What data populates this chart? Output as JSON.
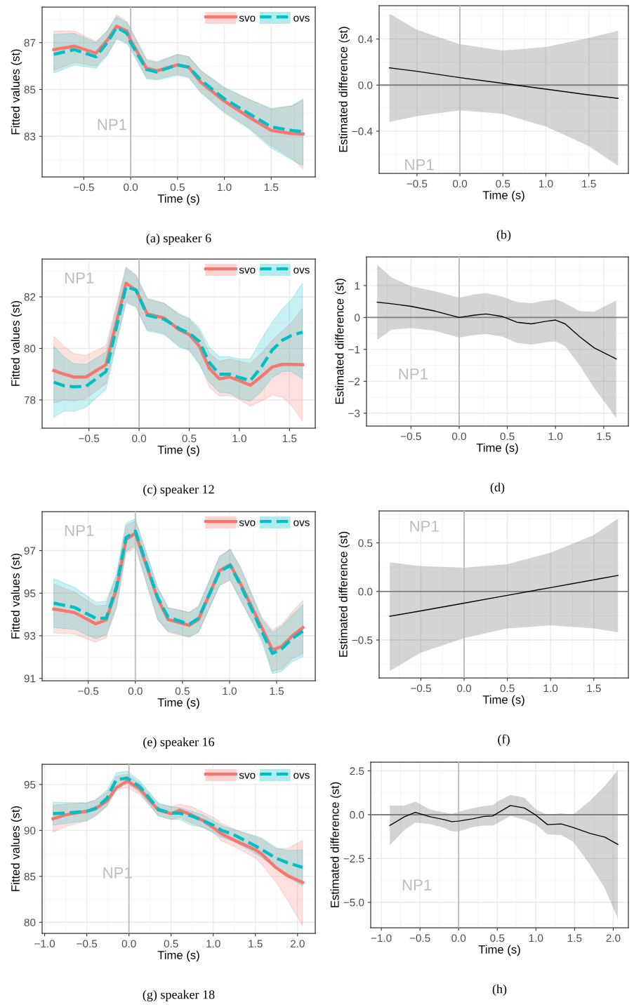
{
  "chart_data": [
    {
      "type": "line",
      "title": "(a) speaker 6",
      "xlabel": "Time (s)",
      "ylabel": "Fitted values (st)",
      "annotations": [
        "NP1"
      ],
      "grid": true,
      "legend": "top right",
      "x": [
        -0.82,
        -0.6,
        -0.37,
        -0.25,
        -0.15,
        -0.04,
        0.0,
        0.17,
        0.28,
        0.5,
        0.62,
        0.75,
        1.0,
        1.25,
        1.5,
        1.72,
        1.84
      ],
      "series": [
        {
          "name": "svo",
          "color": "#f8766d",
          "line_style": "solid",
          "values": [
            86.7,
            86.85,
            86.55,
            87.1,
            87.7,
            87.5,
            87.1,
            85.9,
            85.8,
            86.05,
            85.95,
            85.3,
            84.5,
            83.85,
            83.25,
            83.12,
            83.1
          ],
          "lower": [
            85.8,
            86.15,
            86.0,
            86.5,
            87.2,
            87.0,
            86.8,
            85.5,
            85.45,
            85.65,
            85.55,
            84.9,
            84.05,
            83.4,
            82.6,
            82.05,
            81.6
          ],
          "upper": [
            87.5,
            87.5,
            87.05,
            87.5,
            88.2,
            87.9,
            87.6,
            86.3,
            86.2,
            86.5,
            86.4,
            85.8,
            85.05,
            84.6,
            84.15,
            84.3,
            84.55
          ]
        },
        {
          "name": "ovs",
          "color": "#00bfc4",
          "line_style": "dashed",
          "values": [
            86.5,
            86.7,
            86.4,
            87.0,
            87.65,
            87.4,
            87.0,
            85.85,
            85.75,
            86.05,
            85.95,
            85.4,
            84.6,
            84.0,
            83.4,
            83.25,
            83.2
          ],
          "lower": [
            85.7,
            86.05,
            85.9,
            86.45,
            87.15,
            86.95,
            86.7,
            85.45,
            85.4,
            85.6,
            85.5,
            84.85,
            84.0,
            83.35,
            82.5,
            82.0,
            81.75
          ],
          "upper": [
            87.35,
            87.4,
            87.0,
            87.5,
            88.1,
            87.85,
            87.55,
            86.25,
            86.15,
            86.5,
            86.4,
            85.8,
            85.1,
            84.6,
            84.2,
            84.3,
            84.6
          ]
        }
      ],
      "xlim": [
        -0.945,
        1.97
      ],
      "ylim": [
        81.27,
        88.52
      ],
      "xticks": [
        {
          "value": -0.5,
          "label": "−0.5"
        },
        {
          "value": 0.0,
          "label": "0.0"
        },
        {
          "value": 0.5,
          "label": "0.5"
        },
        {
          "value": 1.0,
          "label": "1.0"
        },
        {
          "value": 1.5,
          "label": "1.5"
        }
      ],
      "yticks": [
        83,
        85,
        87
      ],
      "ref_lines": [
        {
          "axis": "x",
          "value": 0,
          "color": "#bebebe"
        }
      ]
    },
    {
      "type": "line",
      "title": "(b)",
      "xlabel": "Time (s)",
      "ylabel": "Estimated difference (st)",
      "annotations": [
        "NP1"
      ],
      "grid": true,
      "x": [
        -0.82,
        -0.5,
        0,
        0.5,
        1.0,
        1.5,
        1.84
      ],
      "series": [
        {
          "color": "#000000",
          "line_style": "solid",
          "values": [
            0.15,
            0.12,
            0.065,
            0.015,
            -0.035,
            -0.085,
            -0.115
          ],
          "lower": [
            -0.32,
            -0.27,
            -0.22,
            -0.25,
            -0.36,
            -0.53,
            -0.7
          ],
          "upper": [
            0.62,
            0.48,
            0.355,
            0.3,
            0.33,
            0.41,
            0.47
          ]
        }
      ],
      "xlim": [
        -0.94,
        1.96
      ],
      "ylim": [
        -0.766,
        0.69
      ],
      "xticks": [
        {
          "value": -0.5,
          "label": "−0.5"
        },
        {
          "value": 0.0,
          "label": "0.0"
        },
        {
          "value": 0.5,
          "label": "0.5"
        },
        {
          "value": 1.0,
          "label": "1.0"
        },
        {
          "value": 1.5,
          "label": "1.5"
        }
      ],
      "yticks": [
        {
          "value": -0.4,
          "label": "−0.4"
        },
        {
          "value": 0.0,
          "label": "0.0"
        },
        {
          "value": 0.4,
          "label": "0.4"
        }
      ],
      "ref_lines": [
        {
          "axis": "x",
          "value": 0,
          "color": "#bebebe"
        },
        {
          "axis": "y",
          "value": 0,
          "color": "#7f7f7f"
        }
      ]
    },
    {
      "type": "line",
      "title": "(c) speaker 12",
      "xlabel": "Time (s)",
      "ylabel": "Fitted values (st)",
      "annotations": [
        "NP1"
      ],
      "grid": true,
      "legend": "top right",
      "x": [
        -0.85,
        -0.75,
        -0.65,
        -0.53,
        -0.33,
        -0.13,
        -0.03,
        0.08,
        0.25,
        0.4,
        0.5,
        0.6,
        0.7,
        0.8,
        0.9,
        1.0,
        1.11,
        1.22,
        1.33,
        1.43,
        1.52,
        1.63
      ],
      "series": [
        {
          "name": "svo",
          "color": "#f8766d",
          "line_style": "solid",
          "values": [
            79.14,
            79.0,
            78.89,
            78.89,
            79.37,
            82.53,
            82.26,
            81.34,
            81.18,
            80.72,
            80.54,
            80.09,
            79.23,
            78.82,
            78.89,
            78.75,
            78.57,
            78.91,
            79.28,
            79.38,
            79.38,
            79.37
          ],
          "lower": [
            77.87,
            78.0,
            77.96,
            78.05,
            78.64,
            81.81,
            81.63,
            80.72,
            80.59,
            80.09,
            79.95,
            79.46,
            78.51,
            78.15,
            78.17,
            78.02,
            77.76,
            77.96,
            78.19,
            78.1,
            77.78,
            77.18
          ],
          "upper": [
            80.47,
            80.09,
            79.8,
            79.73,
            80.11,
            83.17,
            82.85,
            81.95,
            81.76,
            81.31,
            81.13,
            80.68,
            79.82,
            79.5,
            79.59,
            79.5,
            79.41,
            79.82,
            80.32,
            80.68,
            81.0,
            81.56
          ]
        },
        {
          "name": "ovs",
          "color": "#00bfc4",
          "line_style": "dashed",
          "values": [
            78.69,
            78.55,
            78.51,
            78.53,
            79.1,
            82.4,
            82.26,
            81.29,
            81.13,
            80.77,
            80.59,
            80.27,
            79.46,
            79.0,
            79.0,
            78.87,
            78.75,
            79.28,
            79.95,
            80.32,
            80.5,
            80.63
          ],
          "lower": [
            77.33,
            77.56,
            77.56,
            77.72,
            78.42,
            81.76,
            81.6,
            80.68,
            80.54,
            80.05,
            79.91,
            79.37,
            78.69,
            78.3,
            78.26,
            78.05,
            77.95,
            78.33,
            78.87,
            79.11,
            79.1,
            78.82
          ],
          "upper": [
            80.09,
            79.68,
            79.41,
            79.38,
            79.86,
            83.12,
            82.81,
            81.92,
            81.74,
            81.34,
            81.18,
            80.8,
            80.05,
            79.68,
            79.68,
            79.59,
            79.59,
            80.36,
            81.04,
            81.54,
            81.9,
            82.53
          ]
        }
      ],
      "xlim": [
        -0.967,
        1.757
      ],
      "ylim": [
        76.91,
        83.47
      ],
      "xticks": [
        {
          "value": -0.5,
          "label": "−0.5"
        },
        {
          "value": 0.0,
          "label": "0.0"
        },
        {
          "value": 0.5,
          "label": "0.5"
        },
        {
          "value": 1.0,
          "label": "1.0"
        },
        {
          "value": 1.5,
          "label": "1.5"
        }
      ],
      "yticks": [
        78,
        80,
        82
      ],
      "ref_lines": [
        {
          "axis": "x",
          "value": 0,
          "color": "#bebebe"
        }
      ]
    },
    {
      "type": "line",
      "title": "(d)",
      "xlabel": "Time (s)",
      "ylabel": "Estimated difference (st)",
      "annotations": [
        "NP1"
      ],
      "grid": true,
      "x": [
        -0.85,
        -0.7,
        -0.5,
        -0.25,
        0,
        0.15,
        0.28,
        0.45,
        0.6,
        0.75,
        0.9,
        1.0,
        1.1,
        1.25,
        1.4,
        1.63
      ],
      "series": [
        {
          "color": "#000000",
          "line_style": "solid",
          "values": [
            0.48,
            0.43,
            0.35,
            0.2,
            0.0,
            0.07,
            0.11,
            0.03,
            -0.15,
            -0.2,
            -0.12,
            -0.08,
            -0.2,
            -0.6,
            -0.95,
            -1.3
          ],
          "lower": [
            -0.7,
            -0.38,
            -0.33,
            -0.42,
            -0.63,
            -0.55,
            -0.52,
            -0.6,
            -0.8,
            -0.85,
            -0.78,
            -0.75,
            -0.9,
            -1.5,
            -2.2,
            -3.15
          ],
          "upper": [
            1.65,
            1.25,
            0.98,
            0.82,
            0.62,
            0.72,
            0.77,
            0.65,
            0.48,
            0.45,
            0.53,
            0.57,
            0.45,
            0.2,
            0.18,
            0.53
          ]
        }
      ],
      "xlim": [
        -0.961,
        1.756
      ],
      "ylim": [
        -3.4,
        1.9
      ],
      "xticks": [
        {
          "value": -0.5,
          "label": "−0.5"
        },
        {
          "value": 0.0,
          "label": "0.0"
        },
        {
          "value": 0.5,
          "label": "0.5"
        },
        {
          "value": 1.0,
          "label": "1.0"
        },
        {
          "value": 1.5,
          "label": "1.5"
        }
      ],
      "yticks": [
        {
          "value": -3,
          "label": "−3"
        },
        {
          "value": -2,
          "label": "−2"
        },
        {
          "value": -1,
          "label": "−1"
        },
        0,
        1
      ],
      "ref_lines": [
        {
          "axis": "x",
          "value": 0,
          "color": "#bebebe"
        },
        {
          "axis": "y",
          "value": 0,
          "color": "#7f7f7f"
        }
      ]
    },
    {
      "type": "line",
      "title": "(e) speaker 16",
      "xlabel": "Time (s)",
      "ylabel": "Fitted values (st)",
      "annotations": [
        "NP1"
      ],
      "grid": true,
      "legend": "top right",
      "x": [
        -0.866,
        -0.647,
        -0.42,
        -0.31,
        -0.2,
        -0.1,
        0.0,
        0.236,
        0.348,
        0.572,
        0.67,
        0.895,
        1.007,
        1.12,
        1.343,
        1.455,
        1.555,
        1.667,
        1.779
      ],
      "series": [
        {
          "name": "svo",
          "color": "#f8766d",
          "line_style": "solid",
          "values": [
            94.25,
            94.09,
            93.56,
            93.74,
            95.19,
            97.51,
            97.82,
            94.75,
            93.76,
            93.49,
            93.76,
            96.06,
            96.34,
            95.41,
            93.38,
            92.34,
            92.5,
            93.0,
            93.38
          ],
          "lower": [
            93.12,
            93.08,
            92.69,
            92.91,
            94.31,
            96.85,
            97.14,
            93.76,
            93.16,
            92.92,
            93.16,
            95.35,
            95.6,
            94.64,
            92.88,
            91.33,
            91.44,
            91.92,
            92.17
          ],
          "upper": [
            95.43,
            95.05,
            94.4,
            94.44,
            95.84,
            98.17,
            98.39,
            95.24,
            94.33,
            94.11,
            94.4,
            96.74,
            97.07,
            96.2,
            93.87,
            93.27,
            93.54,
            94.14,
            94.66
          ]
        },
        {
          "name": "ovs",
          "color": "#00bfc4",
          "line_style": "dashed",
          "values": [
            94.53,
            94.33,
            93.82,
            93.82,
            95.3,
            97.6,
            97.91,
            94.8,
            93.87,
            93.54,
            93.82,
            96.01,
            96.3,
            95.35,
            93.21,
            92.17,
            92.39,
            92.88,
            93.21
          ],
          "lower": [
            93.38,
            93.3,
            92.86,
            93.05,
            94.36,
            96.96,
            97.25,
            93.78,
            93.21,
            92.96,
            93.16,
            95.38,
            95.63,
            94.66,
            92.72,
            91.22,
            91.33,
            91.79,
            92.01
          ],
          "upper": [
            95.68,
            95.27,
            94.58,
            94.62,
            95.9,
            98.28,
            98.5,
            95.3,
            94.31,
            94.09,
            94.36,
            96.72,
            97.05,
            96.15,
            93.78,
            93.16,
            93.45,
            93.98,
            94.47
          ]
        }
      ],
      "xlim": [
        -0.99,
        1.91
      ],
      "ylim": [
        90.89,
        98.83
      ],
      "xticks": [
        {
          "value": -0.5,
          "label": "−0.5"
        },
        {
          "value": 0.0,
          "label": "0.0"
        },
        {
          "value": 0.5,
          "label": "0.5"
        },
        {
          "value": 1.0,
          "label": "1.0"
        },
        {
          "value": 1.5,
          "label": "1.5"
        }
      ],
      "yticks": [
        91,
        93,
        95,
        97
      ],
      "ref_lines": [
        {
          "axis": "x",
          "value": 0,
          "color": "#bebebe"
        }
      ]
    },
    {
      "type": "line",
      "title": "(f)",
      "xlabel": "Time (s)",
      "ylabel": "Estimated difference (st)",
      "annotations": [
        "NP1"
      ],
      "grid": true,
      "x": [
        -0.86,
        -0.5,
        0,
        0.5,
        1.0,
        1.5,
        1.78
      ],
      "series": [
        {
          "color": "#000000",
          "line_style": "solid",
          "values": [
            -0.255,
            -0.2,
            -0.12,
            -0.04,
            0.04,
            0.12,
            0.165
          ],
          "lower": [
            -0.82,
            -0.63,
            -0.48,
            -0.38,
            -0.35,
            -0.38,
            -0.42
          ],
          "upper": [
            0.3,
            0.26,
            0.245,
            0.28,
            0.4,
            0.58,
            0.75
          ]
        }
      ],
      "xlim": [
        -0.983,
        1.9
      ],
      "ylim": [
        -0.89,
        0.83
      ],
      "xticks": [
        {
          "value": -0.5,
          "label": "−0.5"
        },
        {
          "value": 0.0,
          "label": "0.0"
        },
        {
          "value": 0.5,
          "label": "0.5"
        },
        {
          "value": 1.0,
          "label": "1.0"
        },
        {
          "value": 1.5,
          "label": "1.5"
        }
      ],
      "yticks": [
        {
          "value": -0.5,
          "label": "−0.5"
        },
        {
          "value": 0.0,
          "label": "0.0"
        },
        {
          "value": 0.5,
          "label": "0.5"
        }
      ],
      "ref_lines": [
        {
          "axis": "x",
          "value": 0,
          "color": "#bebebe"
        },
        {
          "axis": "y",
          "value": 0,
          "color": "#7f7f7f"
        }
      ]
    },
    {
      "type": "line",
      "title": "(g) speaker 18",
      "xlabel": "Time (s)",
      "ylabel": "Fitted values (st)",
      "annotations": [
        "NP1"
      ],
      "grid": true,
      "legend": "top right",
      "x": [
        -0.9,
        -0.75,
        -0.5,
        -0.4,
        -0.26,
        -0.15,
        -0.02,
        0.13,
        0.35,
        0.5,
        0.6,
        0.74,
        0.88,
        1.0,
        1.09,
        1.24,
        1.5,
        1.58,
        1.74,
        1.88,
        2.06
      ],
      "series": [
        {
          "name": "svo",
          "color": "#f8766d",
          "line_style": "solid",
          "values": [
            91.27,
            91.7,
            92.09,
            92.34,
            93.23,
            94.63,
            95.39,
            94.5,
            92.21,
            91.83,
            92.21,
            91.7,
            91.07,
            90.31,
            89.67,
            88.98,
            87.89,
            87.38,
            85.98,
            85.09,
            84.33
          ],
          "lower": [
            89.8,
            90.43,
            91.02,
            91.53,
            92.6,
            94.38,
            94.68,
            93.87,
            91.58,
            91.2,
            91.45,
            90.81,
            90.31,
            89.8,
            88.91,
            88.27,
            87.0,
            86.23,
            84.45,
            82.42,
            79.62
          ],
          "upper": [
            92.72,
            92.9,
            93.05,
            93.31,
            94.12,
            95.9,
            96.11,
            95.14,
            92.85,
            92.6,
            92.85,
            92.6,
            91.96,
            91.45,
            90.81,
            90.18,
            89.29,
            89.03,
            88.02,
            88.02,
            88.91
          ]
        },
        {
          "name": "ovs",
          "color": "#00bfc4",
          "line_style": "dashed",
          "values": [
            91.83,
            91.88,
            92.09,
            92.39,
            93.49,
            95.52,
            95.7,
            94.76,
            92.29,
            91.88,
            91.88,
            91.58,
            91.07,
            90.56,
            90.05,
            89.54,
            88.32,
            87.89,
            87.0,
            86.49,
            85.98
          ],
          "lower": [
            90.56,
            90.76,
            91.07,
            91.58,
            92.72,
            94.76,
            95.09,
            94.12,
            91.58,
            91.2,
            91.2,
            90.56,
            90.31,
            89.75,
            89.29,
            88.78,
            87.51,
            87.0,
            85.98,
            84.96,
            83.94
          ],
          "upper": [
            93.1,
            93.05,
            92.98,
            93.31,
            94.38,
            96.28,
            96.46,
            95.39,
            92.98,
            92.6,
            92.47,
            92.09,
            91.7,
            91.07,
            90.56,
            90.1,
            89.41,
            89.16,
            88.14,
            87.81,
            87.89
          ]
        }
      ],
      "xlim": [
        -1.03,
        2.21
      ],
      "ylim": [
        78.8,
        97.21
      ],
      "xticks": [
        {
          "value": -1.0,
          "label": "−1.0"
        },
        {
          "value": -0.5,
          "label": "−0.5"
        },
        {
          "value": 0.0,
          "label": "0.0"
        },
        {
          "value": 0.5,
          "label": "0.5"
        },
        {
          "value": 1.0,
          "label": "1.0"
        },
        {
          "value": 1.5,
          "label": "1.5"
        },
        {
          "value": 2.0,
          "label": "2.0"
        }
      ],
      "yticks": [
        80,
        85,
        90,
        95
      ],
      "ref_lines": [
        {
          "axis": "x",
          "value": 0,
          "color": "#bebebe"
        }
      ]
    },
    {
      "type": "line",
      "title": "(h)",
      "xlabel": "Time (s)",
      "ylabel": "Estimated difference (st)",
      "annotations": [
        "NP1"
      ],
      "grid": true,
      "x": [
        -0.89,
        -0.7,
        -0.56,
        -0.37,
        -0.19,
        -0.09,
        0,
        0.19,
        0.33,
        0.44,
        0.52,
        0.67,
        0.85,
        1.0,
        1.15,
        1.33,
        1.48,
        1.7,
        1.89,
        2.06
      ],
      "series": [
        {
          "color": "#000000",
          "line_style": "solid",
          "values": [
            -0.62,
            -0.12,
            0.13,
            -0.12,
            -0.28,
            -0.4,
            -0.37,
            -0.23,
            -0.1,
            -0.08,
            0.13,
            0.52,
            0.38,
            -0.03,
            -0.57,
            -0.53,
            -0.73,
            -1.07,
            -1.28,
            -1.7
          ],
          "lower": [
            -1.75,
            -0.87,
            -0.45,
            -0.53,
            -0.75,
            -0.95,
            -0.95,
            -0.7,
            -0.62,
            -0.62,
            -0.45,
            -0.07,
            -0.28,
            -0.57,
            -1.12,
            -1.17,
            -1.53,
            -2.87,
            -4.2,
            -5.95
          ],
          "upper": [
            0.52,
            0.52,
            0.75,
            0.3,
            0.13,
            0.05,
            0.17,
            0.38,
            0.5,
            0.55,
            0.8,
            1.13,
            0.97,
            0.3,
            0.0,
            0.08,
            0.0,
            0.8,
            1.63,
            2.55
          ]
        }
      ],
      "xlim": [
        -1.137,
        2.196
      ],
      "ylim": [
        -6.45,
        3.0
      ],
      "xticks": [
        {
          "value": -1.0,
          "label": "−1.0"
        },
        {
          "value": -0.5,
          "label": "−0.5"
        },
        {
          "value": 0.0,
          "label": "0.0"
        },
        {
          "value": 0.5,
          "label": "0.5"
        },
        {
          "value": 1.0,
          "label": "1.0"
        },
        {
          "value": 1.5,
          "label": "1.5"
        },
        {
          "value": 2.0,
          "label": "2.0"
        }
      ],
      "yticks": [
        {
          "value": -5.0,
          "label": "−5.0"
        },
        {
          "value": -2.5,
          "label": "−2.5"
        },
        {
          "value": 0.0,
          "label": "0.0"
        },
        {
          "value": 2.5,
          "label": "2.5"
        }
      ],
      "ref_lines": [
        {
          "axis": "x",
          "value": 0,
          "color": "#bebebe"
        },
        {
          "axis": "y",
          "value": 0,
          "color": "#7f7f7f"
        }
      ]
    }
  ]
}
